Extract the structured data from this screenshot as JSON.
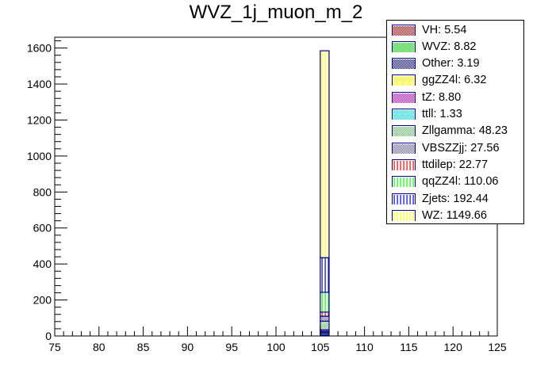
{
  "chart_data": {
    "type": "bar",
    "stacked": true,
    "title": "WVZ_1j_muon_m_2",
    "xlabel": "",
    "ylabel": "",
    "xlim": [
      75,
      125
    ],
    "ylim": [
      0,
      1660
    ],
    "x_ticks": [
      75,
      80,
      85,
      90,
      95,
      100,
      105,
      110,
      115,
      120,
      125
    ],
    "y_ticks": [
      0,
      200,
      400,
      600,
      800,
      1000,
      1200,
      1400,
      1600
    ],
    "bin": [
      105,
      106
    ],
    "legend_position": "top-right",
    "series": [
      {
        "name": "VH",
        "label": "VH: 5.54",
        "value": 5.54,
        "color": "#ff0000",
        "pattern": "checker"
      },
      {
        "name": "WVZ",
        "label": "WVZ: 8.82",
        "value": 8.82,
        "color": "#00ff00",
        "pattern": "checker"
      },
      {
        "name": "Other",
        "label": "Other: 3.19",
        "value": 3.19,
        "color": "#0000ff",
        "pattern": "checker"
      },
      {
        "name": "ggZZ4l",
        "label": "ggZZ4l: 6.32",
        "value": 6.32,
        "color": "#ffff00",
        "pattern": "checker"
      },
      {
        "name": "tZ",
        "label": "tZ: 8.80",
        "value": 8.8,
        "color": "#ff00ff",
        "pattern": "checker"
      },
      {
        "name": "ttll",
        "label": "ttll: 1.33",
        "value": 1.33,
        "color": "#00ffff",
        "pattern": "checker"
      },
      {
        "name": "Zllgamma",
        "label": "Zllgamma: 48.23",
        "value": 48.23,
        "color": "#66cc66",
        "pattern": "checker"
      },
      {
        "name": "VBSZZjj",
        "label": "VBSZZjj: 27.56",
        "value": 27.56,
        "color": "#6666cc",
        "pattern": "checker"
      },
      {
        "name": "ttdilep",
        "label": "ttdilep: 22.77",
        "value": 22.77,
        "color": "#ff0000",
        "pattern": "vlines"
      },
      {
        "name": "qqZZ4l",
        "label": "qqZZ4l: 110.06",
        "value": 110.06,
        "color": "#00ff00",
        "pattern": "vlines"
      },
      {
        "name": "Zjets",
        "label": "Zjets: 192.44",
        "value": 192.44,
        "color": "#0000ff",
        "pattern": "vlines"
      },
      {
        "name": "WZ",
        "label": "WZ: 1149.66",
        "value": 1149.66,
        "color": "#ffff00",
        "pattern": "vlines"
      }
    ]
  }
}
